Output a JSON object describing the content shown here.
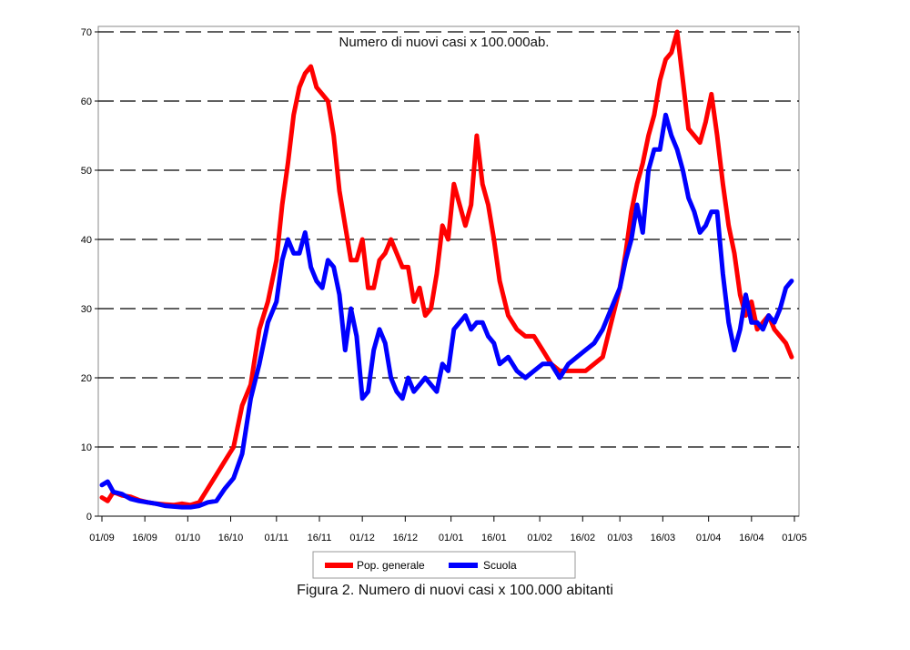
{
  "caption": "Figura 2. Numero di nuovi casi x 100.000 abitanti",
  "chart_data": {
    "type": "line",
    "title": "Numero di nuovi casi x 100.000ab.",
    "xlabel": "",
    "ylabel": "",
    "ylim": [
      0,
      70
    ],
    "yticks": [
      0,
      10,
      20,
      30,
      40,
      50,
      60,
      70
    ],
    "xlim": [
      "2020-09-01",
      "2021-05-01"
    ],
    "xticks": [
      {
        "date": "2020-09-01",
        "label": "01/09"
      },
      {
        "date": "2020-09-16",
        "label": "16/09"
      },
      {
        "date": "2020-10-01",
        "label": "01/10"
      },
      {
        "date": "2020-10-16",
        "label": "16/10"
      },
      {
        "date": "2020-11-01",
        "label": "01/11"
      },
      {
        "date": "2020-11-16",
        "label": "16/11"
      },
      {
        "date": "2020-12-01",
        "label": "01/12"
      },
      {
        "date": "2020-12-16",
        "label": "16/12"
      },
      {
        "date": "2021-01-01",
        "label": "01/01"
      },
      {
        "date": "2021-01-16",
        "label": "16/01"
      },
      {
        "date": "2021-02-01",
        "label": "01/02"
      },
      {
        "date": "2021-02-16",
        "label": "16/02"
      },
      {
        "date": "2021-03-01",
        "label": "01/03"
      },
      {
        "date": "2021-03-16",
        "label": "16/03"
      },
      {
        "date": "2021-04-01",
        "label": "01/04"
      },
      {
        "date": "2021-04-16",
        "label": "16/04"
      },
      {
        "date": "2021-05-01",
        "label": "01/05"
      }
    ],
    "grid": "horizontal dashed",
    "legend_position": "bottom",
    "series": [
      {
        "name": "Pop. generale",
        "color": "#ff0000",
        "x": [
          "2020-09-01",
          "2020-09-03",
          "2020-09-05",
          "2020-09-08",
          "2020-09-11",
          "2020-09-14",
          "2020-09-17",
          "2020-09-20",
          "2020-09-23",
          "2020-09-26",
          "2020-09-29",
          "2020-10-02",
          "2020-10-05",
          "2020-10-08",
          "2020-10-11",
          "2020-10-14",
          "2020-10-17",
          "2020-10-20",
          "2020-10-23",
          "2020-10-26",
          "2020-10-29",
          "2020-11-01",
          "2020-11-03",
          "2020-11-05",
          "2020-11-07",
          "2020-11-09",
          "2020-11-11",
          "2020-11-13",
          "2020-11-15",
          "2020-11-17",
          "2020-11-19",
          "2020-11-21",
          "2020-11-23",
          "2020-11-25",
          "2020-11-27",
          "2020-11-29",
          "2020-12-01",
          "2020-12-03",
          "2020-12-05",
          "2020-12-07",
          "2020-12-09",
          "2020-12-11",
          "2020-12-13",
          "2020-12-15",
          "2020-12-17",
          "2020-12-19",
          "2020-12-21",
          "2020-12-23",
          "2020-12-25",
          "2020-12-27",
          "2020-12-29",
          "2020-12-31",
          "2021-01-02",
          "2021-01-04",
          "2021-01-06",
          "2021-01-08",
          "2021-01-10",
          "2021-01-12",
          "2021-01-14",
          "2021-01-16",
          "2021-01-18",
          "2021-01-21",
          "2021-01-24",
          "2021-01-27",
          "2021-01-30",
          "2021-02-02",
          "2021-02-05",
          "2021-02-08",
          "2021-02-11",
          "2021-02-14",
          "2021-02-17",
          "2021-02-20",
          "2021-02-23",
          "2021-02-26",
          "2021-03-01",
          "2021-03-03",
          "2021-03-05",
          "2021-03-07",
          "2021-03-09",
          "2021-03-11",
          "2021-03-13",
          "2021-03-15",
          "2021-03-17",
          "2021-03-19",
          "2021-03-21",
          "2021-03-23",
          "2021-03-25",
          "2021-03-27",
          "2021-03-29",
          "2021-03-31",
          "2021-04-02",
          "2021-04-04",
          "2021-04-06",
          "2021-04-08",
          "2021-04-10",
          "2021-04-12",
          "2021-04-14",
          "2021-04-16",
          "2021-04-18",
          "2021-04-20",
          "2021-04-22",
          "2021-04-24",
          "2021-04-26",
          "2021-04-28",
          "2021-04-30"
        ],
        "values": [
          2.7,
          2.2,
          3.5,
          3,
          2.8,
          2.3,
          2,
          1.8,
          1.7,
          1.6,
          1.8,
          1.6,
          2,
          4,
          6,
          8,
          10,
          16,
          19,
          27,
          31,
          37,
          45,
          51,
          58,
          62,
          64,
          65,
          62,
          61,
          60,
          55,
          47,
          42,
          37,
          37,
          40,
          33,
          33,
          37,
          38,
          40,
          38,
          36,
          36,
          31,
          33,
          29,
          30,
          35,
          42,
          40,
          48,
          45,
          42,
          45,
          55,
          48,
          45,
          40,
          34,
          29,
          27,
          26,
          26,
          24,
          22,
          21,
          21,
          21,
          21,
          22,
          23,
          28,
          33,
          38,
          44,
          48,
          51,
          55,
          58,
          63,
          66,
          67,
          70,
          63,
          56,
          55,
          54,
          57,
          61,
          55,
          48,
          42,
          38,
          32,
          29,
          31,
          27,
          28,
          29,
          27,
          26,
          25,
          23
        ]
      },
      {
        "name": "Scuola",
        "color": "#0000ff",
        "x": [
          "2020-09-01",
          "2020-09-03",
          "2020-09-05",
          "2020-09-08",
          "2020-09-11",
          "2020-09-14",
          "2020-09-17",
          "2020-09-20",
          "2020-09-23",
          "2020-09-26",
          "2020-09-29",
          "2020-10-02",
          "2020-10-05",
          "2020-10-08",
          "2020-10-11",
          "2020-10-14",
          "2020-10-17",
          "2020-10-20",
          "2020-10-23",
          "2020-10-26",
          "2020-10-29",
          "2020-11-01",
          "2020-11-03",
          "2020-11-05",
          "2020-11-07",
          "2020-11-09",
          "2020-11-11",
          "2020-11-13",
          "2020-11-15",
          "2020-11-17",
          "2020-11-19",
          "2020-11-21",
          "2020-11-23",
          "2020-11-25",
          "2020-11-27",
          "2020-11-29",
          "2020-12-01",
          "2020-12-03",
          "2020-12-05",
          "2020-12-07",
          "2020-12-09",
          "2020-12-11",
          "2020-12-13",
          "2020-12-15",
          "2020-12-17",
          "2020-12-19",
          "2020-12-21",
          "2020-12-23",
          "2020-12-25",
          "2020-12-27",
          "2020-12-29",
          "2020-12-31",
          "2021-01-02",
          "2021-01-04",
          "2021-01-06",
          "2021-01-08",
          "2021-01-10",
          "2021-01-12",
          "2021-01-14",
          "2021-01-16",
          "2021-01-18",
          "2021-01-21",
          "2021-01-24",
          "2021-01-27",
          "2021-01-30",
          "2021-02-02",
          "2021-02-05",
          "2021-02-08",
          "2021-02-11",
          "2021-02-14",
          "2021-02-17",
          "2021-02-20",
          "2021-02-23",
          "2021-02-26",
          "2021-03-01",
          "2021-03-03",
          "2021-03-05",
          "2021-03-07",
          "2021-03-09",
          "2021-03-11",
          "2021-03-13",
          "2021-03-15",
          "2021-03-17",
          "2021-03-19",
          "2021-03-21",
          "2021-03-23",
          "2021-03-25",
          "2021-03-27",
          "2021-03-29",
          "2021-03-31",
          "2021-04-02",
          "2021-04-04",
          "2021-04-06",
          "2021-04-08",
          "2021-04-10",
          "2021-04-12",
          "2021-04-14",
          "2021-04-16",
          "2021-04-18",
          "2021-04-20",
          "2021-04-22",
          "2021-04-24",
          "2021-04-26",
          "2021-04-28",
          "2021-04-30"
        ],
        "values": [
          4.5,
          5,
          3.5,
          3.2,
          2.5,
          2.2,
          2,
          1.8,
          1.5,
          1.4,
          1.3,
          1.3,
          1.5,
          2,
          2.2,
          4,
          5.5,
          9,
          17,
          22,
          28,
          31,
          37,
          40,
          38,
          38,
          41,
          36,
          34,
          33,
          37,
          36,
          32,
          24,
          30,
          26,
          17,
          18,
          24,
          27,
          25,
          20,
          18,
          17,
          20,
          18,
          19,
          20,
          19,
          18,
          22,
          21,
          27,
          28,
          29,
          27,
          28,
          28,
          26,
          25,
          22,
          23,
          21,
          20,
          21,
          22,
          22,
          20,
          22,
          23,
          24,
          25,
          27,
          30,
          33,
          37,
          40,
          45,
          41,
          50,
          53,
          53,
          58,
          55,
          53,
          50,
          46,
          44,
          41,
          42,
          44,
          44,
          35,
          28,
          24,
          27,
          32,
          28,
          28,
          27,
          29,
          28,
          30,
          33,
          34
        ]
      }
    ]
  }
}
